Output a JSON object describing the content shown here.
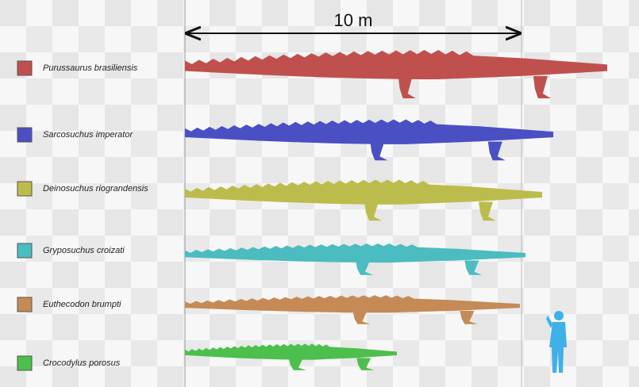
{
  "scale_label": "10 m",
  "species": [
    {
      "name": "Purussaurus brasiliensis",
      "color": "#c0504d"
    },
    {
      "name": "Sarcosuchus imperator",
      "color": "#4a4fc4"
    },
    {
      "name": "Deinosuchus riograndensis",
      "color": "#bcbc4c"
    },
    {
      "name": "Gryposuchus croizati",
      "color": "#4bbcbf"
    },
    {
      "name": "Euthecodon brumpti",
      "color": "#c58a55"
    },
    {
      "name": "Crocodylus porosus",
      "color": "#4cbf4c"
    }
  ],
  "human_color": "#3fb0e8"
}
